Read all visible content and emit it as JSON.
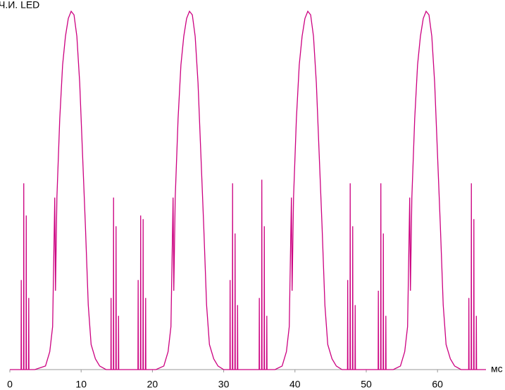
{
  "chart_data": {
    "type": "line",
    "title": "Ч.И. LED",
    "x_label": "мс",
    "xlim": [
      0,
      66.8
    ],
    "ylim": [
      0,
      100
    ],
    "xticks": [
      0,
      10,
      20,
      30,
      40,
      50,
      60
    ],
    "x": [
      0,
      1.0,
      1.57,
      1.6,
      1.63,
      1.92,
      1.95,
      1.98,
      2.27,
      2.3,
      2.33,
      2.62,
      2.65,
      2.68,
      3.5,
      5.0,
      5.6,
      6.0,
      6.3,
      6.4,
      6.6,
      7.0,
      7.4,
      7.8,
      8.2,
      8.6,
      9.0,
      9.4,
      9.8,
      10.2,
      10.6,
      11.0,
      11.4,
      12.0,
      12.6,
      13.5,
      14.17,
      14.2,
      14.23,
      14.52,
      14.55,
      14.58,
      14.87,
      14.9,
      14.93,
      15.22,
      15.25,
      15.28,
      16.5,
      17.97,
      18.0,
      18.03,
      18.32,
      18.35,
      18.38,
      18.67,
      18.7,
      18.73,
      19.02,
      19.05,
      19.08,
      20.5,
      21.6,
      22.2,
      22.6,
      22.9,
      23.0,
      23.2,
      23.6,
      24.0,
      24.4,
      24.8,
      25.2,
      25.6,
      26.0,
      26.4,
      26.8,
      27.2,
      27.6,
      28.0,
      28.6,
      29.2,
      30.0,
      30.87,
      30.9,
      30.93,
      31.22,
      31.25,
      31.28,
      31.57,
      31.6,
      31.63,
      31.92,
      31.95,
      31.98,
      33.5,
      34.97,
      35.0,
      35.03,
      35.32,
      35.35,
      35.38,
      35.67,
      35.7,
      35.73,
      36.02,
      36.05,
      36.08,
      37.2,
      38.2,
      38.8,
      39.2,
      39.5,
      39.6,
      39.8,
      40.2,
      40.6,
      41.0,
      41.4,
      41.8,
      42.2,
      42.6,
      43.0,
      43.4,
      43.8,
      44.2,
      44.6,
      45.2,
      45.8,
      46.6,
      47.37,
      47.4,
      47.43,
      47.72,
      47.75,
      47.78,
      48.07,
      48.1,
      48.13,
      48.42,
      48.45,
      48.48,
      50.2,
      51.67,
      51.7,
      51.73,
      52.02,
      52.05,
      52.08,
      52.37,
      52.4,
      52.43,
      52.72,
      52.75,
      52.78,
      53.8,
      54.8,
      55.4,
      55.8,
      56.1,
      56.2,
      56.4,
      56.8,
      57.2,
      57.6,
      58.0,
      58.4,
      58.8,
      59.2,
      59.6,
      60.0,
      60.4,
      60.8,
      61.2,
      61.8,
      62.4,
      63.3,
      64.37,
      64.4,
      64.43,
      64.72,
      64.75,
      64.78,
      65.07,
      65.1,
      65.13,
      65.42,
      65.45,
      65.48,
      66.8
    ],
    "series": [
      {
        "name": "LED",
        "color": "#cc0080",
        "values": [
          0,
          0,
          0,
          25,
          0,
          0,
          52,
          0,
          0,
          43,
          0,
          0,
          20,
          0,
          0,
          1,
          5,
          12,
          48,
          22,
          48,
          70,
          85,
          93,
          98,
          100,
          99,
          93,
          80,
          60,
          40,
          18,
          7,
          3,
          1,
          0,
          0,
          20,
          0,
          0,
          48,
          0,
          0,
          40,
          0,
          0,
          15,
          0,
          0,
          0,
          25,
          0,
          0,
          43,
          0,
          0,
          42,
          0,
          0,
          20,
          0,
          0,
          1,
          5,
          12,
          48,
          22,
          48,
          70,
          85,
          93,
          98,
          100,
          99,
          93,
          80,
          60,
          40,
          18,
          7,
          3,
          1,
          0,
          0,
          25,
          0,
          0,
          52,
          0,
          0,
          38,
          0,
          0,
          18,
          0,
          0,
          0,
          20,
          0,
          0,
          53,
          0,
          0,
          40,
          0,
          0,
          15,
          0,
          0,
          1,
          5,
          12,
          48,
          22,
          48,
          70,
          85,
          93,
          98,
          100,
          99,
          93,
          80,
          60,
          40,
          18,
          7,
          3,
          1,
          0,
          0,
          25,
          0,
          0,
          52,
          0,
          0,
          40,
          0,
          0,
          18,
          0,
          0,
          0,
          22,
          0,
          0,
          52,
          0,
          0,
          38,
          0,
          0,
          15,
          0,
          0,
          1,
          5,
          12,
          48,
          22,
          48,
          70,
          85,
          93,
          98,
          100,
          99,
          93,
          80,
          60,
          40,
          18,
          7,
          3,
          1,
          0,
          0,
          20,
          0,
          0,
          52,
          0,
          0,
          42,
          0,
          0,
          15,
          0,
          0
        ]
      }
    ]
  }
}
